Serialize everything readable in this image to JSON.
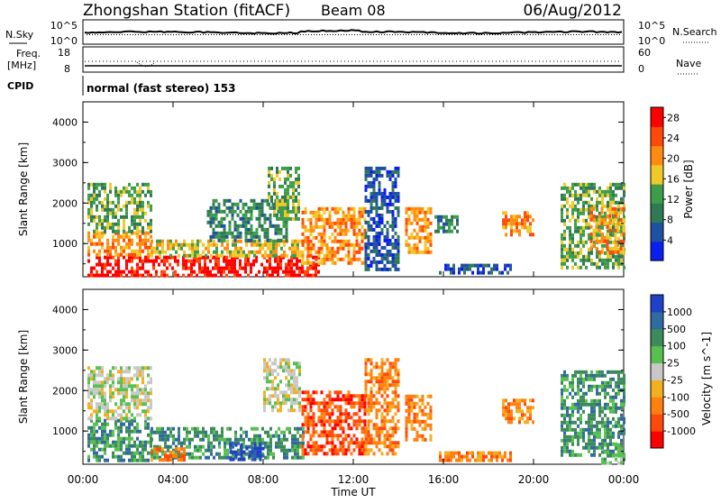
{
  "header": {
    "station": "Zhongshan Station (fitACF)",
    "beam": "Beam 08",
    "date": "06/Aug/2012"
  },
  "top_panels": {
    "nsky_label": "N.Sky",
    "nsky_ticks": [
      "10^5",
      "10^0"
    ],
    "nsearch_label": "N.Search",
    "freq_label_line1": "Freq.",
    "freq_label_line2": "[MHz]",
    "freq_ticks": [
      "18",
      "8"
    ],
    "nave_ticks": [
      "60",
      "0"
    ],
    "nave_label": "Nave",
    "cpid_label": "CPID",
    "cpid_text": "normal (fast stereo) 153"
  },
  "chart_data": [
    {
      "type": "heatmap",
      "title": "",
      "xlabel": "Time UT",
      "ylabel": "Slant Range [km]",
      "x_ticks": [
        "00:00",
        "04:00",
        "08:00",
        "12:00",
        "16:00",
        "20:00",
        "00:00"
      ],
      "x_range_hours": [
        0,
        24
      ],
      "y_ticks": [
        "1000",
        "2000",
        "3000",
        "4000"
      ],
      "y_range_km": [
        180,
        4500
      ],
      "colorbar": {
        "label": "Power [dB]",
        "ticks": [
          "4",
          "8",
          "12",
          "16",
          "20",
          "24",
          "28"
        ],
        "range": [
          0,
          30
        ],
        "colors": [
          "#0a1ef0",
          "#2050a0",
          "#2f7a55",
          "#3d9d48",
          "#f0c828",
          "#ff8c10",
          "#ff4a0a",
          "#ff0000"
        ]
      },
      "regions": [
        {
          "t0": 0.2,
          "t1": 10.5,
          "r0": 250,
          "r1": 700,
          "level": 7
        },
        {
          "t0": 0.2,
          "t1": 3.0,
          "r0": 700,
          "r1": 1300,
          "level": 5
        },
        {
          "t0": 0.2,
          "t1": 3.0,
          "r0": 1300,
          "r1": 2500,
          "level": 3
        },
        {
          "t0": 3.0,
          "t1": 9.8,
          "r0": 700,
          "r1": 1100,
          "level": 4
        },
        {
          "t0": 5.5,
          "t1": 9.0,
          "r0": 1100,
          "r1": 2100,
          "level": 2
        },
        {
          "t0": 8.2,
          "t1": 9.6,
          "r0": 1600,
          "r1": 2900,
          "level": 3
        },
        {
          "t0": 9.7,
          "t1": 12.5,
          "r0": 500,
          "r1": 1900,
          "level": 5
        },
        {
          "t0": 12.5,
          "t1": 14.0,
          "r0": 400,
          "r1": 2900,
          "level": 1
        },
        {
          "t0": 14.3,
          "t1": 15.5,
          "r0": 800,
          "r1": 1900,
          "level": 5
        },
        {
          "t0": 15.6,
          "t1": 16.6,
          "r0": 1300,
          "r1": 1700,
          "level": 2
        },
        {
          "t0": 15.8,
          "t1": 19.0,
          "r0": 250,
          "r1": 500,
          "level": 1
        },
        {
          "t0": 18.6,
          "t1": 20.0,
          "r0": 1200,
          "r1": 1800,
          "level": 5
        },
        {
          "t0": 21.2,
          "t1": 24.0,
          "r0": 400,
          "r1": 2500,
          "level": 3
        },
        {
          "t0": 22.5,
          "t1": 24.0,
          "r0": 800,
          "r1": 1900,
          "level": 5
        }
      ]
    },
    {
      "type": "heatmap",
      "title": "",
      "xlabel": "Time UT",
      "ylabel": "Slant Range [km]",
      "x_ticks": [
        "00:00",
        "04:00",
        "08:00",
        "12:00",
        "16:00",
        "20:00",
        "00:00"
      ],
      "x_range_hours": [
        0,
        24
      ],
      "y_ticks": [
        "1000",
        "2000",
        "3000",
        "4000"
      ],
      "y_range_km": [
        180,
        4500
      ],
      "colorbar": {
        "label": "Velocity [m s^-1]",
        "ticks": [
          "1000",
          "500",
          "100",
          "25",
          "-25",
          "-100",
          "-500",
          "-1000"
        ],
        "colors": [
          "#2040c8",
          "#2f6aa0",
          "#3d8a5a",
          "#58c050",
          "#c8c8c8",
          "#f0b020",
          "#ff8010",
          "#ff4a0a",
          "#ff0000"
        ]
      },
      "regions": [
        {
          "t0": 0.2,
          "t1": 3.0,
          "r0": 300,
          "r1": 1300,
          "level": 2
        },
        {
          "t0": 0.2,
          "t1": 3.0,
          "r0": 1300,
          "r1": 2600,
          "level": 4
        },
        {
          "t0": 3.0,
          "t1": 9.8,
          "r0": 300,
          "r1": 1100,
          "level": 2
        },
        {
          "t0": 6.5,
          "t1": 8.0,
          "r0": 300,
          "r1": 700,
          "level": 0
        },
        {
          "t0": 3.0,
          "t1": 4.5,
          "r0": 250,
          "r1": 600,
          "level": 6
        },
        {
          "t0": 8.0,
          "t1": 9.6,
          "r0": 1500,
          "r1": 2800,
          "level": 4
        },
        {
          "t0": 9.7,
          "t1": 12.5,
          "r0": 400,
          "r1": 2000,
          "level": 7
        },
        {
          "t0": 12.5,
          "t1": 14.0,
          "r0": 400,
          "r1": 2800,
          "level": 6
        },
        {
          "t0": 14.3,
          "t1": 15.5,
          "r0": 800,
          "r1": 1900,
          "level": 6
        },
        {
          "t0": 15.8,
          "t1": 19.0,
          "r0": 250,
          "r1": 500,
          "level": 6
        },
        {
          "t0": 18.6,
          "t1": 20.0,
          "r0": 1200,
          "r1": 1800,
          "level": 6
        },
        {
          "t0": 21.2,
          "t1": 24.0,
          "r0": 400,
          "r1": 2500,
          "level": 2
        },
        {
          "t0": 23.0,
          "t1": 24.0,
          "r0": 200,
          "r1": 700,
          "level": 3
        }
      ]
    }
  ]
}
